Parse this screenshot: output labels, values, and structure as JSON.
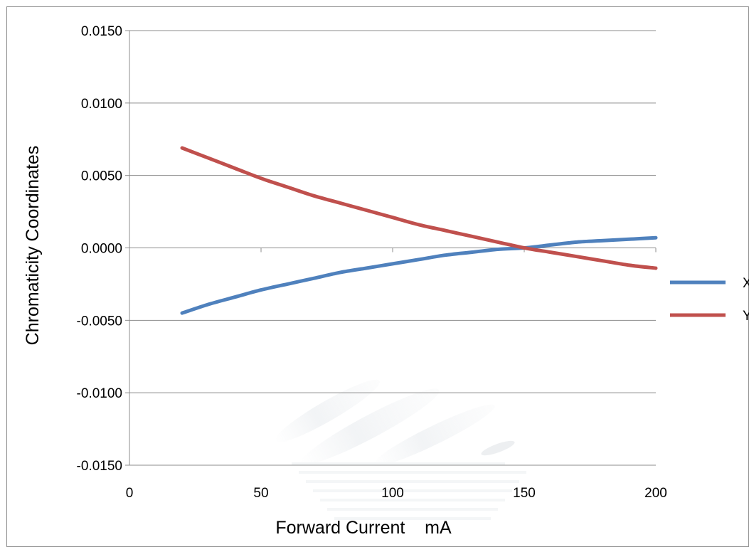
{
  "chart_data": {
    "type": "line",
    "title": "",
    "xlabel": "Forward Current    mA",
    "ylabel": "Chromaticity Coordinates",
    "xlim": [
      0,
      200
    ],
    "ylim": [
      -0.015,
      0.015
    ],
    "x_ticks": [
      "0",
      "50",
      "100",
      "150",
      "200"
    ],
    "y_ticks": [
      "0.0150",
      "0.0100",
      "0.0050",
      "0.0000",
      "-0.0050",
      "-0.0100",
      "-0.0150"
    ],
    "x_tick_values": [
      0,
      50,
      100,
      150,
      200
    ],
    "y_tick_values": [
      0.015,
      0.01,
      0.005,
      0,
      -0.005,
      -0.01,
      -0.015
    ],
    "grid": "horizontal",
    "legend_position": "right",
    "series": [
      {
        "name": "X",
        "color": "#4f81bd",
        "x": [
          20,
          30,
          40,
          50,
          60,
          70,
          80,
          90,
          100,
          110,
          120,
          130,
          140,
          150,
          160,
          170,
          180,
          190,
          200
        ],
        "y": [
          -0.0045,
          -0.0039,
          -0.0034,
          -0.0029,
          -0.0025,
          -0.0021,
          -0.0017,
          -0.0014,
          -0.0011,
          -0.0008,
          -0.0005,
          -0.0003,
          -0.0001,
          0.0,
          0.0002,
          0.0004,
          0.0005,
          0.0006,
          0.0007
        ]
      },
      {
        "name": "Y",
        "color": "#c0504d",
        "x": [
          20,
          30,
          40,
          50,
          60,
          70,
          80,
          90,
          100,
          110,
          120,
          130,
          140,
          150,
          160,
          170,
          180,
          190,
          200
        ],
        "y": [
          0.0069,
          0.0062,
          0.0055,
          0.0048,
          0.0042,
          0.0036,
          0.0031,
          0.0026,
          0.0021,
          0.0016,
          0.0012,
          0.0008,
          0.0004,
          0.0,
          -0.0003,
          -0.0006,
          -0.0009,
          -0.0012,
          -0.0014
        ]
      }
    ]
  }
}
